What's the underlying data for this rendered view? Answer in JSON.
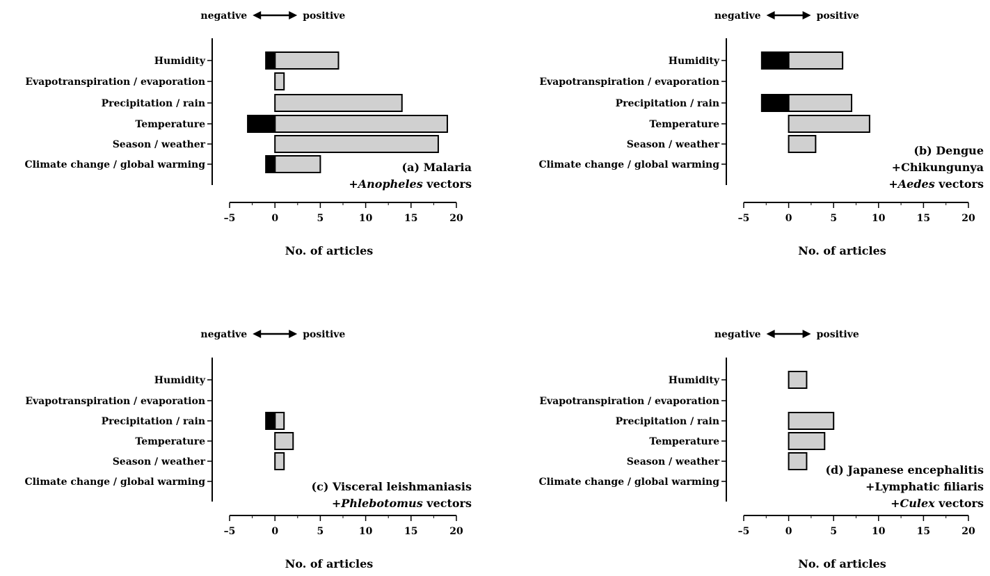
{
  "chart_data": [
    {
      "type": "bar",
      "orientation": "horizontal",
      "stacked": "diverging",
      "direction_label": {
        "negative": "negative",
        "positive": "positive"
      },
      "categories": [
        "Humidity",
        "Evapotranspiration / evaporation",
        "Precipitation / rain",
        "Temperature",
        "Season / weather",
        "Climate change / global warming"
      ],
      "series": [
        {
          "name": "negative",
          "values": [
            -1,
            0,
            0,
            -3,
            0,
            -1
          ]
        },
        {
          "name": "positive",
          "values": [
            7,
            1,
            14,
            19,
            18,
            5
          ]
        }
      ],
      "title_lines": [
        "(a) Malaria",
        "+",
        "Anopheles",
        " vectors"
      ],
      "title": {
        "line1": "(a) Malaria",
        "line2_prefix": "+",
        "line2_italic": "Anopheles",
        "line2_suffix": " vectors",
        "line3_prefix": "",
        "line3_italic": "",
        "line3_suffix": ""
      },
      "xlabel": "No. of articles",
      "xlim": [
        -5,
        20
      ],
      "xticks": [
        -5,
        0,
        5,
        10,
        15,
        20
      ],
      "grid": false,
      "colors": {
        "negative": "#000000",
        "positive": "#d0d0d0"
      }
    },
    {
      "type": "bar",
      "orientation": "horizontal",
      "stacked": "diverging",
      "direction_label": {
        "negative": "negative",
        "positive": "positive"
      },
      "categories": [
        "Humidity",
        "Evapotranspiration / evaporation",
        "Precipitation / rain",
        "Temperature",
        "Season / weather",
        "Climate change / global warming"
      ],
      "series": [
        {
          "name": "negative",
          "values": [
            -3,
            0,
            -3,
            0,
            0,
            0
          ]
        },
        {
          "name": "positive",
          "values": [
            6,
            0,
            7,
            9,
            3,
            0
          ]
        }
      ],
      "title": {
        "line1": "(b) Dengue",
        "line2_prefix": "+Chikungunya",
        "line2_italic": "",
        "line2_suffix": "",
        "line3_prefix": "+",
        "line3_italic": "Aedes",
        "line3_suffix": " vectors"
      },
      "xlabel": "No. of articles",
      "xlim": [
        -5,
        20
      ],
      "xticks": [
        -5,
        0,
        5,
        10,
        15,
        20
      ],
      "grid": false,
      "colors": {
        "negative": "#000000",
        "positive": "#d0d0d0"
      }
    },
    {
      "type": "bar",
      "orientation": "horizontal",
      "stacked": "diverging",
      "direction_label": {
        "negative": "negative",
        "positive": "positive"
      },
      "categories": [
        "Humidity",
        "Evapotranspiration / evaporation",
        "Precipitation / rain",
        "Temperature",
        "Season / weather",
        "Climate change / global warming"
      ],
      "series": [
        {
          "name": "negative",
          "values": [
            0,
            0,
            -1,
            0,
            0,
            0
          ]
        },
        {
          "name": "positive",
          "values": [
            0,
            0,
            1,
            2,
            1,
            0
          ]
        }
      ],
      "title": {
        "line1": "(c) Visceral leishmaniasis",
        "line2_prefix": "+",
        "line2_italic": "Phlebotomus",
        "line2_suffix": " vectors",
        "line3_prefix": "",
        "line3_italic": "",
        "line3_suffix": ""
      },
      "xlabel": "No. of articles",
      "xlim": [
        -5,
        20
      ],
      "xticks": [
        -5,
        0,
        5,
        10,
        15,
        20
      ],
      "grid": false,
      "colors": {
        "negative": "#000000",
        "positive": "#d0d0d0"
      }
    },
    {
      "type": "bar",
      "orientation": "horizontal",
      "stacked": "diverging",
      "direction_label": {
        "negative": "negative",
        "positive": "positive"
      },
      "categories": [
        "Humidity",
        "Evapotranspiration / evaporation",
        "Precipitation / rain",
        "Temperature",
        "Season / weather",
        "Climate change / global warming"
      ],
      "series": [
        {
          "name": "negative",
          "values": [
            0,
            0,
            0,
            0,
            0,
            0
          ]
        },
        {
          "name": "positive",
          "values": [
            2,
            0,
            5,
            4,
            2,
            0
          ]
        }
      ],
      "title": {
        "line1": "(d) Japanese encephalitis",
        "line2_prefix": "+Lymphatic filiaris",
        "line2_italic": "",
        "line2_suffix": "",
        "line3_prefix": "+",
        "line3_italic": "Culex",
        "line3_suffix": " vectors"
      },
      "xlabel": "No. of articles",
      "xlim": [
        -5,
        20
      ],
      "xticks": [
        -5,
        0,
        5,
        10,
        15,
        20
      ],
      "grid": false,
      "colors": {
        "negative": "#000000",
        "positive": "#d0d0d0"
      }
    }
  ]
}
